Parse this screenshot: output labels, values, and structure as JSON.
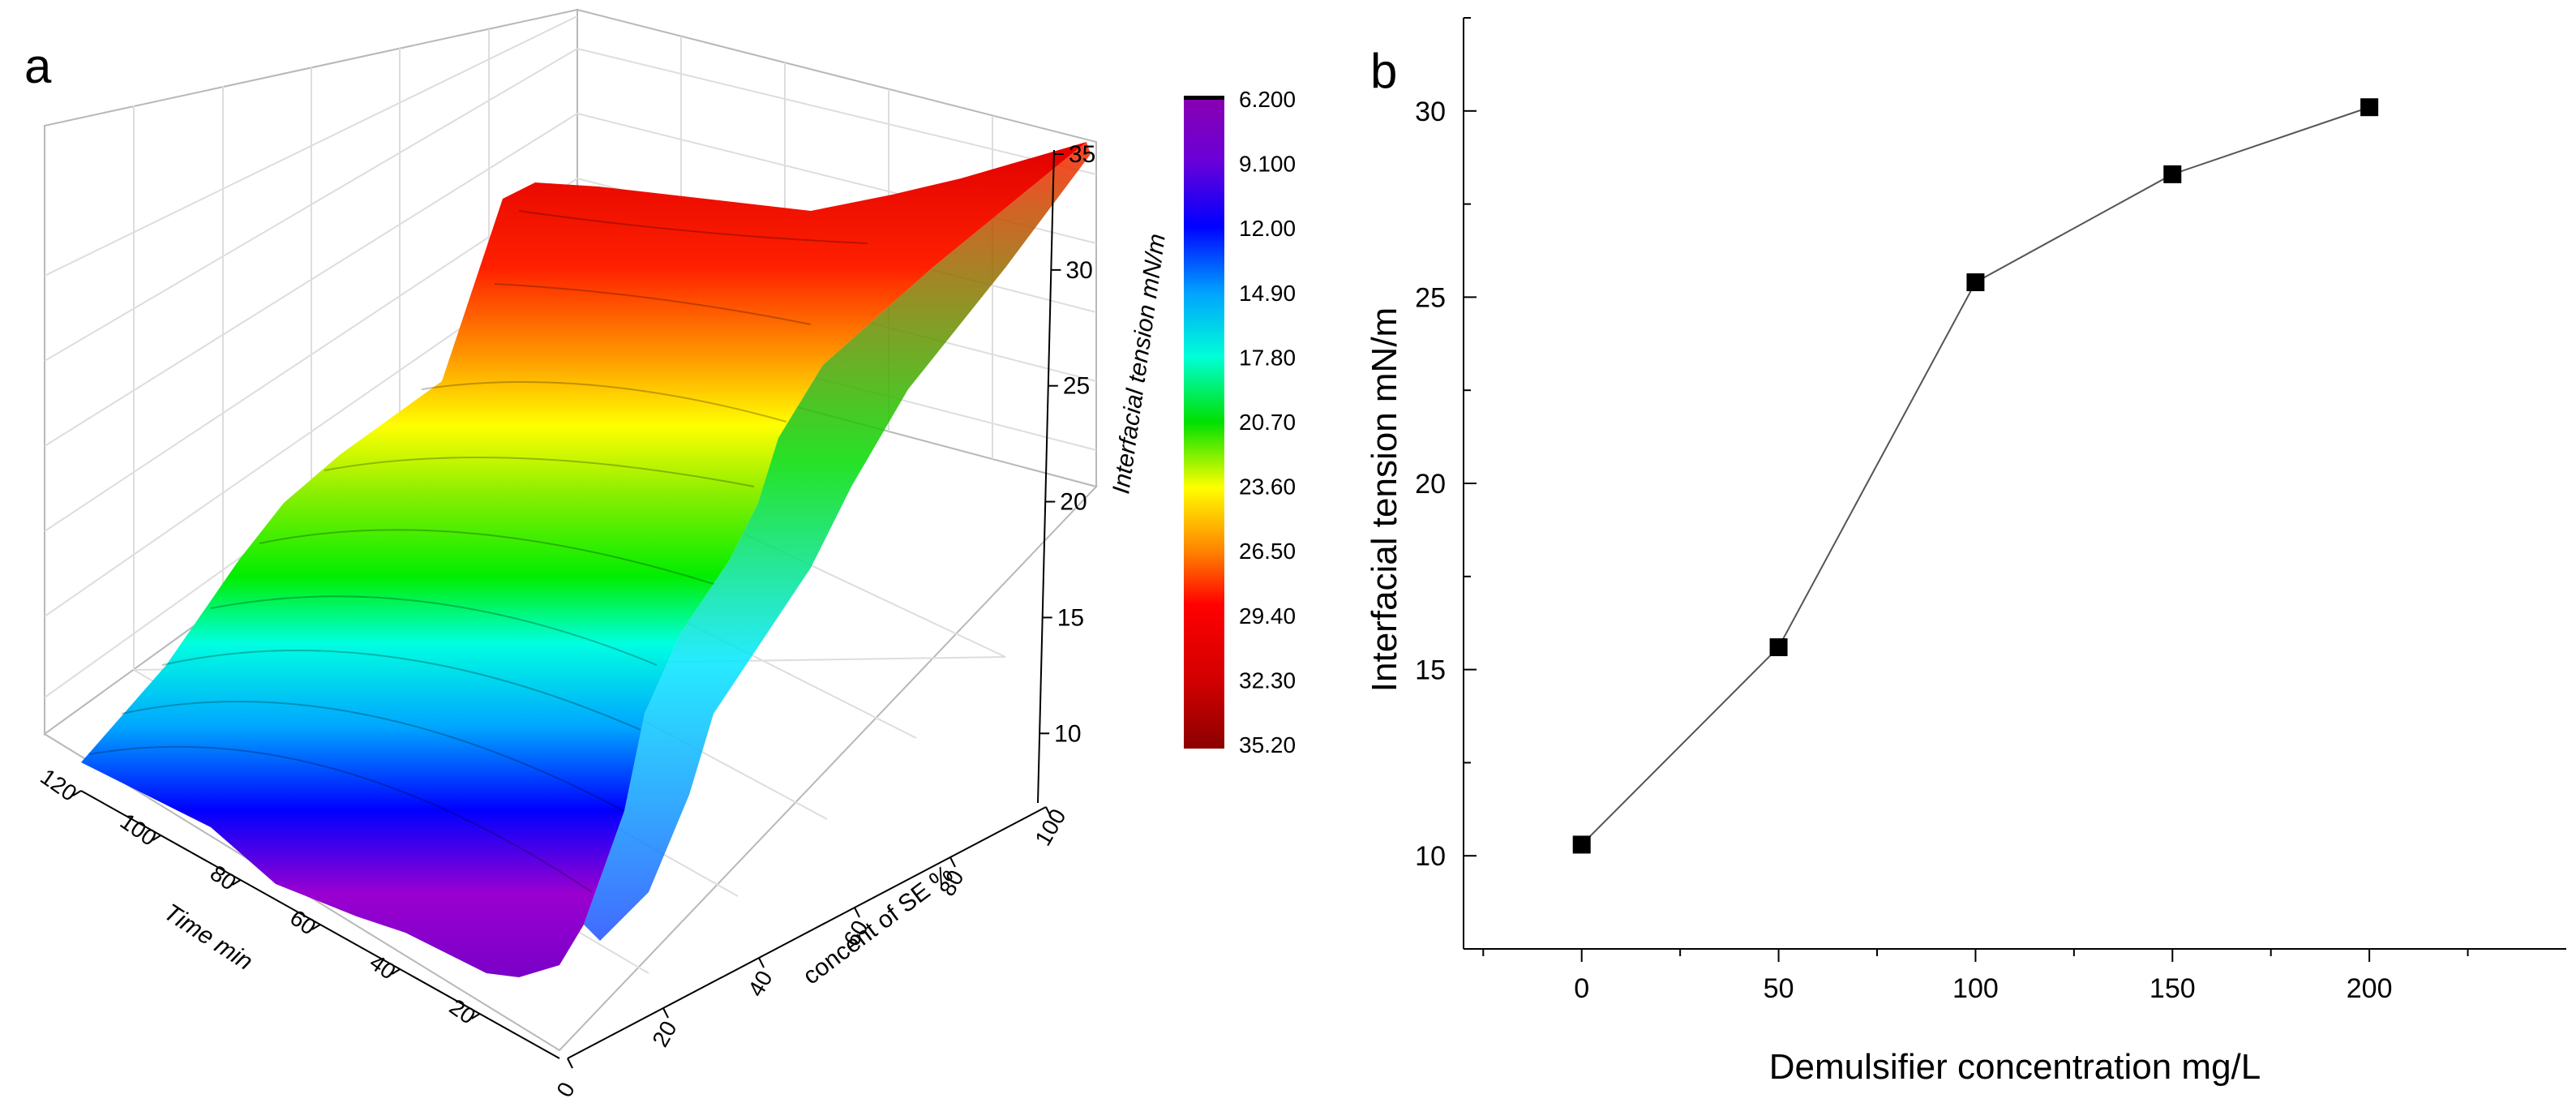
{
  "panels": {
    "a": {
      "label": "a"
    },
    "b": {
      "label": "b"
    }
  },
  "chart_data": [
    {
      "panel": "a",
      "type": "surface3d",
      "x_axis": {
        "label": "Time min",
        "range": [
          0,
          120
        ],
        "ticks": [
          "20",
          "40",
          "60",
          "80",
          "100",
          "120"
        ]
      },
      "y_axis": {
        "label": "concent of SE %",
        "range": [
          0,
          100
        ],
        "ticks": [
          "0",
          "20",
          "40",
          "60",
          "80",
          "100"
        ]
      },
      "z_axis": {
        "label": "Interfacial tension mN/m",
        "range": [
          7,
          35
        ],
        "ticks": [
          "10",
          "15",
          "20",
          "25",
          "30",
          "35"
        ]
      },
      "grid": true,
      "colorbar": {
        "position": "right",
        "levels": [
          "6.200",
          "9.100",
          "12.00",
          "14.90",
          "17.80",
          "20.70",
          "23.60",
          "26.50",
          "29.40",
          "32.30",
          "35.20"
        ],
        "colors": [
          "#000000",
          "#7a00a8",
          "#0000ff",
          "#00a6ff",
          "#00ffd0",
          "#00dd00",
          "#ffff00",
          "#ff8000",
          "#ff0000",
          "#dd0000",
          "#8b0000"
        ]
      },
      "surface_profile": [
        {
          "se": 0,
          "tension": 8.5
        },
        {
          "se": 20,
          "tension": 12.0
        },
        {
          "se": 40,
          "tension": 17.0
        },
        {
          "se": 60,
          "tension": 22.0
        },
        {
          "se": 80,
          "tension": 28.5
        },
        {
          "se": 100,
          "tension": 32.0
        }
      ]
    },
    {
      "panel": "b",
      "type": "line",
      "x": [
        0,
        50,
        100,
        150,
        200
      ],
      "values": [
        10.3,
        15.6,
        25.4,
        28.3,
        30.1
      ],
      "xlabel": "Demulsifier concentration mg/L",
      "ylabel": "Interfacial tension mN/m",
      "xlim": [
        -30,
        250
      ],
      "ylim": [
        7.5,
        32.5
      ],
      "xticks": [
        "0",
        "50",
        "100",
        "150",
        "200"
      ],
      "yticks": [
        "10",
        "15",
        "20",
        "25",
        "30"
      ],
      "marker": "square",
      "line_color": "#555555",
      "marker_color": "#000000",
      "grid": false
    }
  ]
}
